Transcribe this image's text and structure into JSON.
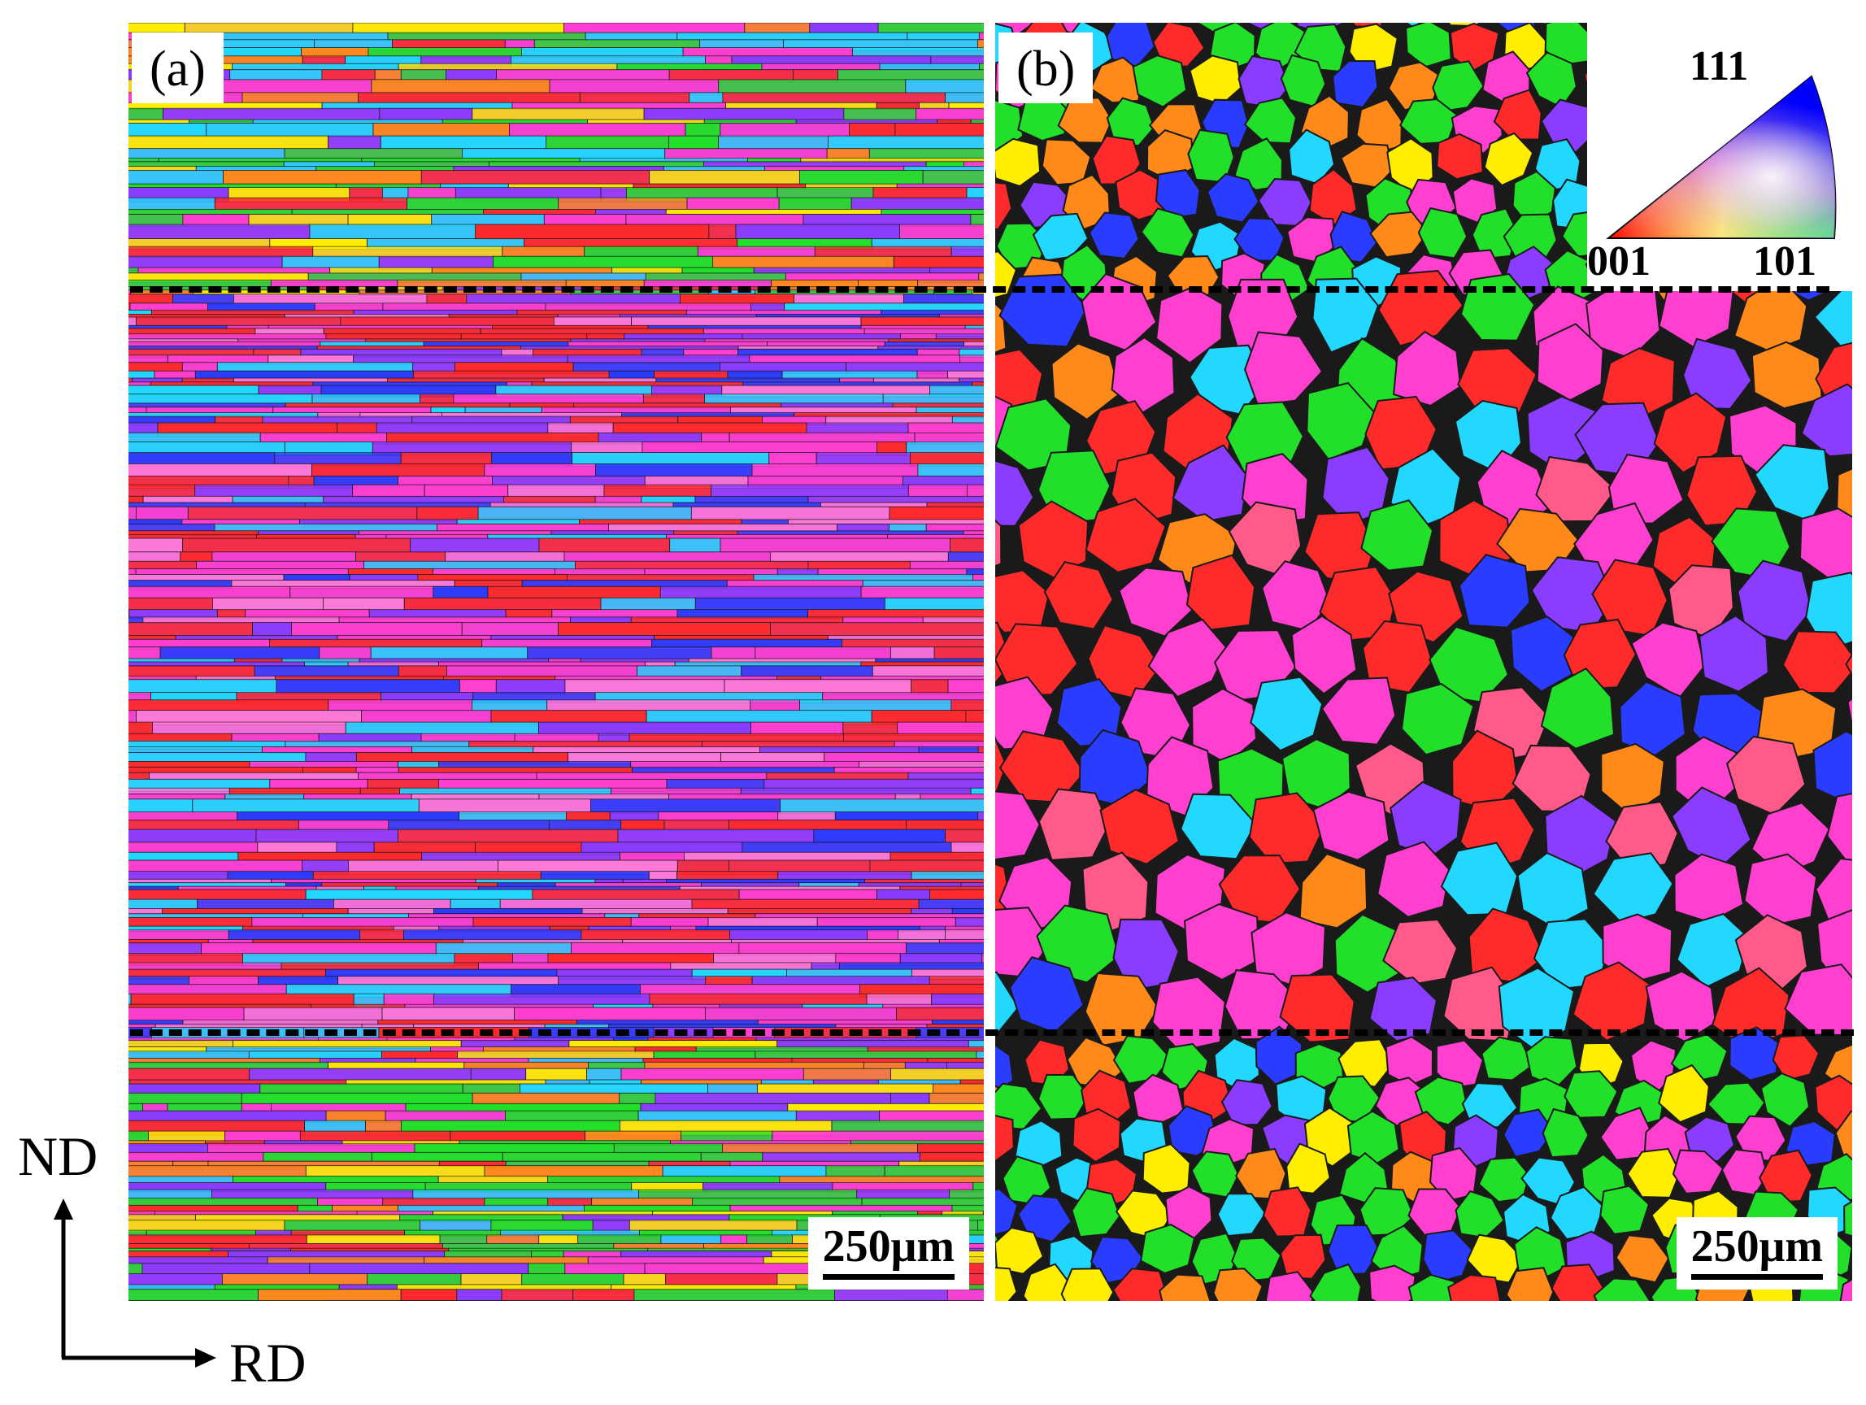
{
  "panels": {
    "a": {
      "label": "(a)",
      "scale_bar": "250μm"
    },
    "b": {
      "label": "(b)",
      "scale_bar": "250μm"
    }
  },
  "ipf_legend": {
    "top": "111",
    "left": "001",
    "right": "101"
  },
  "axes": {
    "vertical": "ND",
    "horizontal": "RD"
  },
  "colors": {
    "red": "#ff2a2a",
    "green": "#22e02a",
    "blue": "#2a3cff",
    "magenta": "#ff3fd0",
    "cyan": "#22d8ff",
    "orange": "#ff8a1a",
    "yellow": "#ffee00",
    "purple": "#8a3cff",
    "boundary": "#1a1a1a"
  }
}
